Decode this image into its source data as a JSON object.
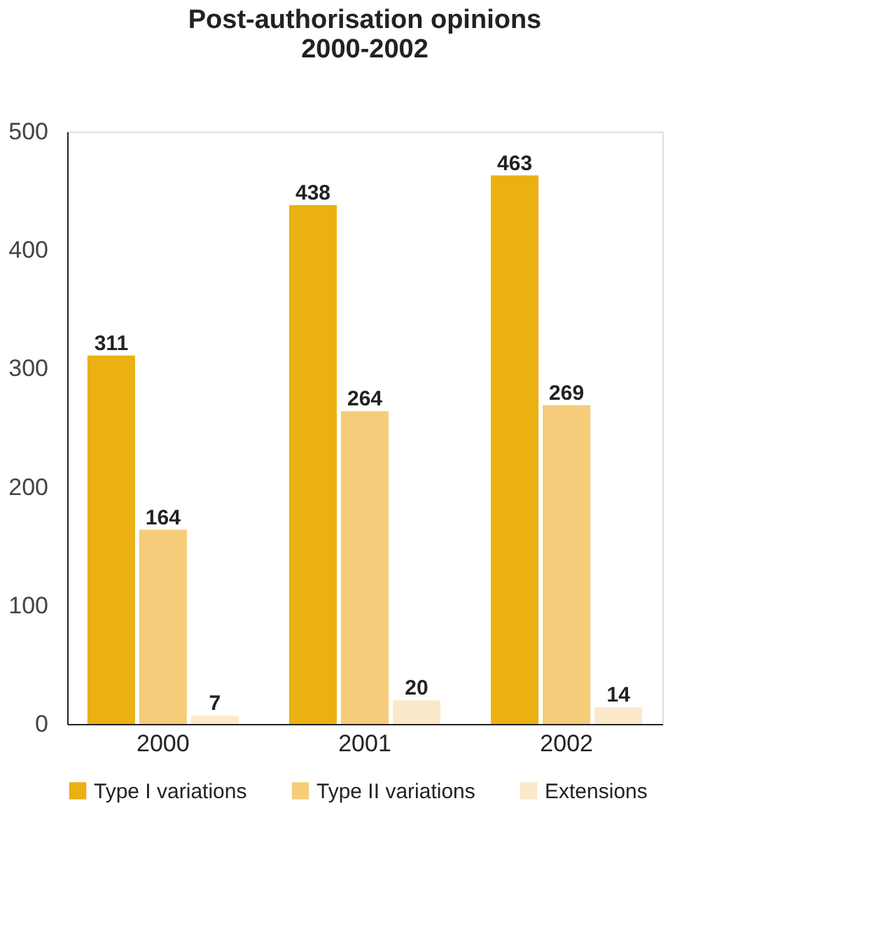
{
  "chart_data": {
    "type": "bar",
    "title": "Post-authorisation opinions\n2000-2002",
    "categories": [
      "2000",
      "2001",
      "2002"
    ],
    "series": [
      {
        "name": "Type I variations",
        "color": "#ebb012",
        "values": [
          311,
          438,
          463
        ]
      },
      {
        "name": "Type II variations",
        "color": "#f6cc7a",
        "values": [
          164,
          264,
          269
        ]
      },
      {
        "name": "Extensions",
        "color": "#fce9c9",
        "values": [
          7,
          20,
          14
        ]
      }
    ],
    "ylim": [
      0,
      500
    ],
    "yticks": [
      0,
      100,
      200,
      300,
      400,
      500
    ],
    "grid": false,
    "legend": "bottom",
    "data_labels": true
  }
}
